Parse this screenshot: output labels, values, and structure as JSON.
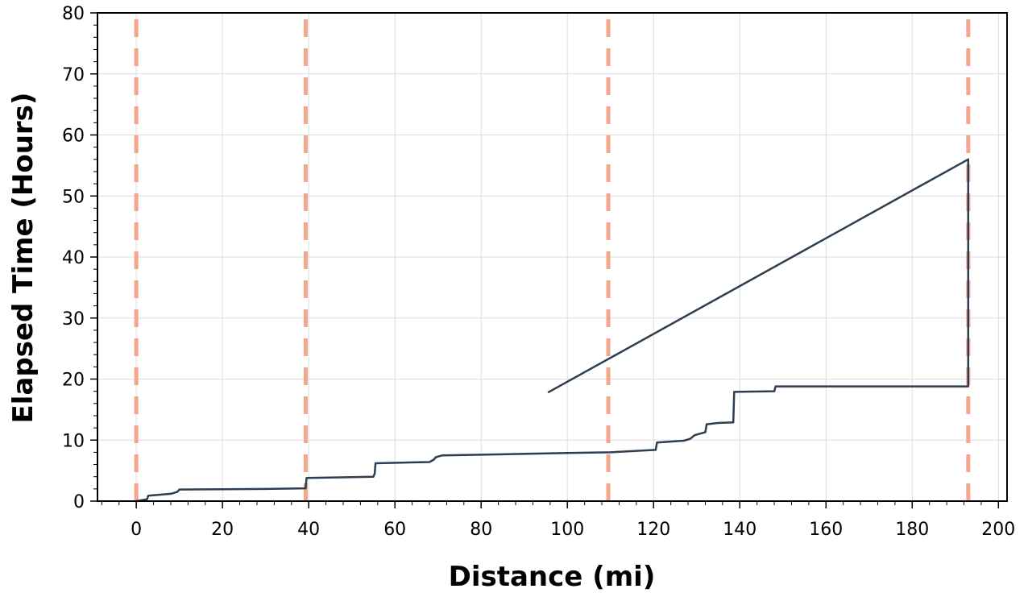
{
  "chart_data": {
    "type": "line",
    "title": "",
    "xlabel": "Distance (mi)",
    "ylabel": "Elapsed Time (Hours)",
    "xlim": [
      -9,
      202
    ],
    "ylim": [
      0,
      80
    ],
    "x_ticks": [
      0,
      20,
      40,
      60,
      80,
      100,
      120,
      140,
      160,
      180,
      200
    ],
    "y_ticks": [
      0,
      10,
      20,
      30,
      40,
      50,
      60,
      70,
      80
    ],
    "x_tick_labels": [
      "0",
      "20",
      "40",
      "60",
      "80",
      "100",
      "120",
      "140",
      "160",
      "180",
      "200"
    ],
    "y_tick_labels": [
      "0",
      "10",
      "20",
      "30",
      "40",
      "50",
      "60",
      "70",
      "80"
    ],
    "grid": true,
    "legend": "none",
    "reference_lines": {
      "orientation": "vertical",
      "style": "dashed",
      "color": "#f4a58a",
      "x": [
        0,
        39.3,
        109.5,
        193
      ]
    },
    "series": [
      {
        "color": "#2c3e50",
        "points": [
          [
            0,
            0
          ],
          [
            2.5,
            0.3
          ],
          [
            2.8,
            0.9
          ],
          [
            8,
            1.2
          ],
          [
            9.5,
            1.5
          ],
          [
            10,
            1.9
          ],
          [
            20,
            1.95
          ],
          [
            30,
            2.0
          ],
          [
            39.3,
            2.1
          ],
          [
            39.5,
            3.8
          ],
          [
            55,
            4.0
          ],
          [
            55.3,
            4.5
          ],
          [
            55.5,
            6.2
          ],
          [
            68,
            6.4
          ],
          [
            69,
            6.8
          ],
          [
            69.5,
            7.2
          ],
          [
            70,
            7.3
          ],
          [
            71,
            7.5
          ],
          [
            80,
            7.6
          ],
          [
            100,
            7.9
          ],
          [
            110,
            8.0
          ],
          [
            120.5,
            8.4
          ],
          [
            120.8,
            9.6
          ],
          [
            127,
            9.9
          ],
          [
            128.5,
            10.2
          ],
          [
            129.5,
            10.8
          ],
          [
            131,
            11.1
          ],
          [
            132,
            11.3
          ],
          [
            132.3,
            12.6
          ],
          [
            135,
            12.8
          ],
          [
            138.5,
            12.9
          ],
          [
            138.7,
            17.9
          ],
          [
            148,
            18.0
          ],
          [
            148.3,
            18.8
          ],
          [
            193,
            18.8
          ],
          [
            193,
            56
          ],
          [
            95.5,
            17.8
          ]
        ]
      }
    ]
  }
}
